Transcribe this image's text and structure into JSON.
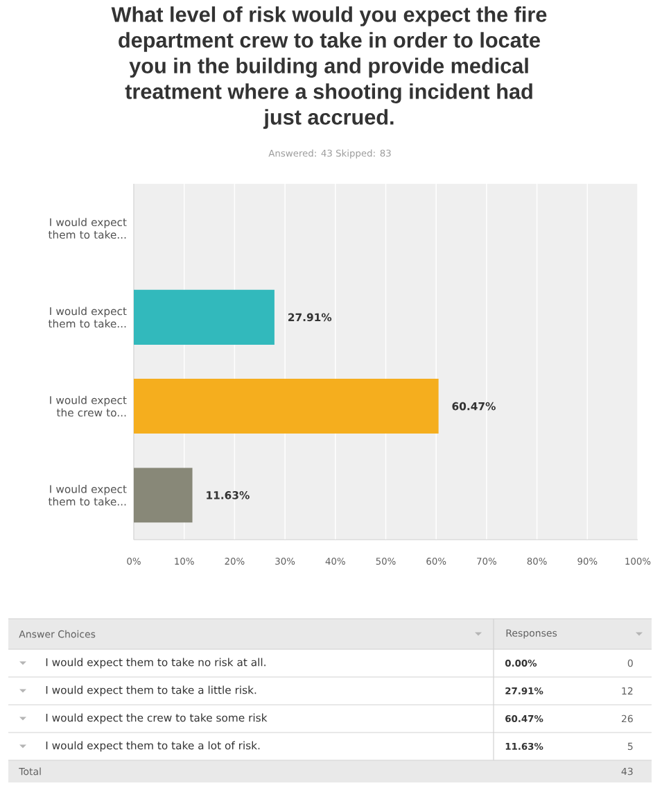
{
  "chart_data": {
    "type": "bar",
    "orientation": "horizontal",
    "title": "What level of risk would you expect the fire department crew to take in order to locate you in the building and provide medical treatment where a shooting incident had just accrued.",
    "subtitle": "Answered: 43 Skipped: 83",
    "categories": [
      "I would expect them to take...",
      "I would expect them to take...",
      "I would expect the crew to...",
      "I would expect them to take..."
    ],
    "values": [
      0,
      27.91,
      60.47,
      11.63
    ],
    "colors": [
      null,
      "#32b9bc",
      "#f5ae1e",
      "#888878"
    ],
    "value_labels": [
      null,
      "27.91%",
      "60.47%",
      "11.63%"
    ],
    "xlim": [
      0,
      100
    ],
    "xticks": [
      {
        "value": 0,
        "label": "0%"
      },
      {
        "value": 10,
        "label": "10%"
      },
      {
        "value": 20,
        "label": "20%"
      },
      {
        "value": 30,
        "label": "30%"
      },
      {
        "value": 40,
        "label": "40%"
      },
      {
        "value": 50,
        "label": "50%"
      },
      {
        "value": 60,
        "label": "60%"
      },
      {
        "value": 70,
        "label": "70%"
      },
      {
        "value": 80,
        "label": "80%"
      },
      {
        "value": 90,
        "label": "90%"
      },
      {
        "value": 100,
        "label": "100%"
      }
    ],
    "grid": "x",
    "annotations": [
      "Answer Choices",
      "Responses",
      "I would expect them to take no risk at all.",
      "0.00%",
      "0",
      "I would expect them to take a little risk.",
      "27.91%",
      "12",
      "I would expect the crew to take some risk",
      "60.47%",
      "26",
      "I would expect them to take a lot of risk.",
      "11.63%",
      "5",
      "Total",
      "43"
    ]
  }
}
